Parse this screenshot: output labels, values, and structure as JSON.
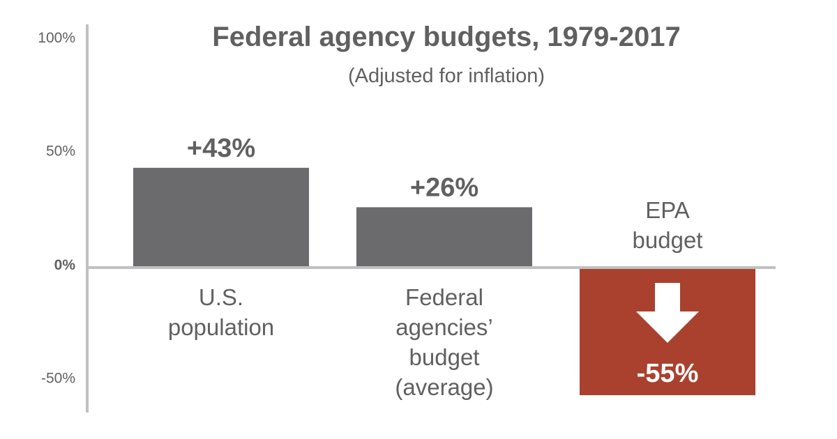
{
  "chart_data": {
    "type": "bar",
    "title": "Federal agency budgets, 1979-2017",
    "subtitle": "(Adjusted for inflation)",
    "categories": [
      [
        "U.S.",
        "population"
      ],
      [
        "Federal",
        "agencies’",
        "budget",
        "(average)"
      ],
      [
        "EPA",
        "budget"
      ]
    ],
    "values": [
      43,
      26,
      -55
    ],
    "value_labels": [
      "+43%",
      "+26%",
      "-55%"
    ],
    "y_ticks": [
      {
        "value": 100,
        "label": "100%"
      },
      {
        "value": 50,
        "label": "50%"
      },
      {
        "value": 0,
        "label": "0%"
      },
      {
        "value": -50,
        "label": "-50%"
      }
    ],
    "ylim": [
      -60,
      100
    ],
    "grid": false,
    "legend": "none",
    "icon": "down-arrow-icon",
    "colors": {
      "positive_bar": "#6b6b6d",
      "negative_bar": "#a9412e",
      "axis": "#c0c0c0",
      "text": "#606060"
    }
  }
}
